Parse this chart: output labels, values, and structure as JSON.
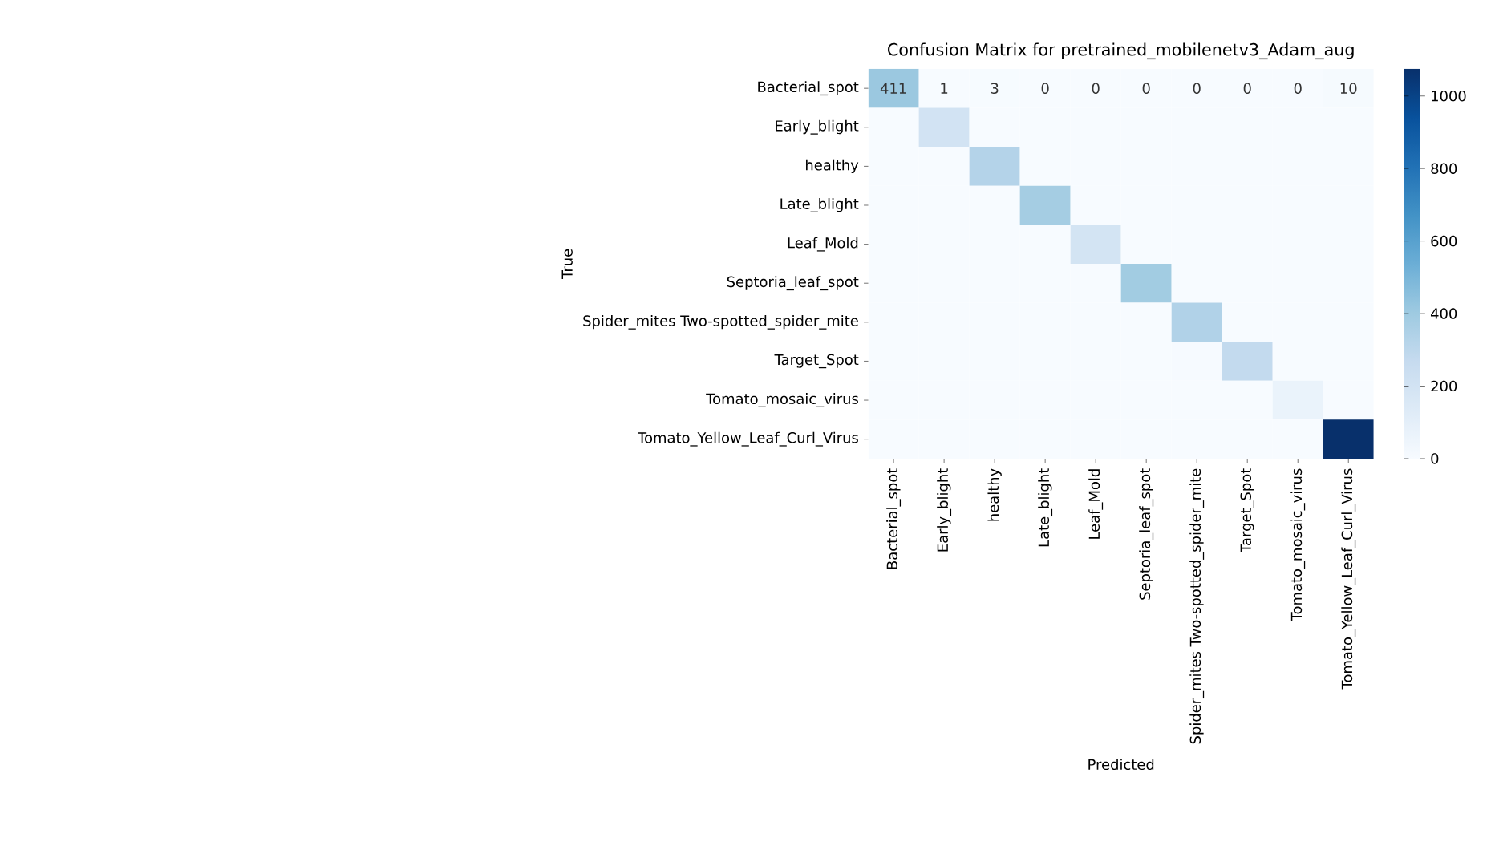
{
  "chart_data": {
    "type": "heatmap",
    "title": "Confusion Matrix for pretrained_mobilenetv3_Adam_aug",
    "xlabel": "Predicted",
    "ylabel": "True",
    "categories": [
      "Bacterial_spot",
      "Early_blight",
      "healthy",
      "Late_blight",
      "Leaf_Mold",
      "Septoria_leaf_spot",
      "Spider_mites Two-spotted_spider_mite",
      "Target_Spot",
      "Tomato_mosaic_virus",
      "Tomato_Yellow_Leaf_Curl_Virus"
    ],
    "y_categories": [
      "Bacterial_spot",
      "Early_blight",
      "healthy",
      "Late_blight",
      "Leaf_Mold",
      "Septoria_leaf_spot",
      "Spider_mites Two-spotted_spider_mite",
      "Target_Spot",
      "Tomato_mosaic_virus",
      "Tomato_Yellow_Leaf_Curl_Virus"
    ],
    "cells": [
      [
        411,
        1,
        3,
        0,
        0,
        0,
        0,
        0,
        0,
        10
      ],
      [
        0,
        200,
        0,
        0,
        0,
        0,
        0,
        0,
        0,
        0
      ],
      [
        0,
        0,
        330,
        0,
        0,
        0,
        0,
        0,
        0,
        0
      ],
      [
        0,
        0,
        0,
        380,
        0,
        0,
        0,
        0,
        0,
        0
      ],
      [
        0,
        0,
        0,
        0,
        195,
        0,
        0,
        0,
        0,
        0
      ],
      [
        0,
        0,
        0,
        0,
        0,
        390,
        0,
        0,
        0,
        0
      ],
      [
        0,
        0,
        0,
        0,
        0,
        0,
        340,
        0,
        0,
        0
      ],
      [
        0,
        0,
        0,
        0,
        0,
        0,
        5,
        280,
        0,
        0
      ],
      [
        0,
        0,
        0,
        0,
        0,
        0,
        0,
        0,
        70,
        0
      ],
      [
        0,
        0,
        0,
        0,
        0,
        0,
        0,
        0,
        0,
        1075
      ]
    ],
    "cell_labels": [
      [
        "411",
        "1",
        "3",
        "0",
        "0",
        "0",
        "0",
        "0",
        "0",
        "10"
      ],
      [
        null,
        null,
        null,
        null,
        null,
        null,
        null,
        null,
        null,
        null
      ],
      [
        null,
        null,
        null,
        null,
        null,
        null,
        null,
        null,
        null,
        null
      ],
      [
        null,
        null,
        null,
        null,
        null,
        null,
        null,
        null,
        null,
        null
      ],
      [
        null,
        null,
        null,
        null,
        null,
        null,
        null,
        null,
        null,
        null
      ],
      [
        null,
        null,
        null,
        null,
        null,
        null,
        null,
        null,
        null,
        null
      ],
      [
        null,
        null,
        null,
        null,
        null,
        null,
        null,
        null,
        null,
        null
      ],
      [
        null,
        null,
        null,
        null,
        null,
        null,
        null,
        null,
        null,
        null
      ],
      [
        null,
        null,
        null,
        null,
        null,
        null,
        null,
        null,
        null,
        null
      ],
      [
        null,
        null,
        null,
        null,
        null,
        null,
        null,
        null,
        null,
        null
      ]
    ],
    "clim": [
      0,
      1075
    ],
    "cticks": [
      0,
      200,
      400,
      600,
      800,
      1000
    ]
  }
}
